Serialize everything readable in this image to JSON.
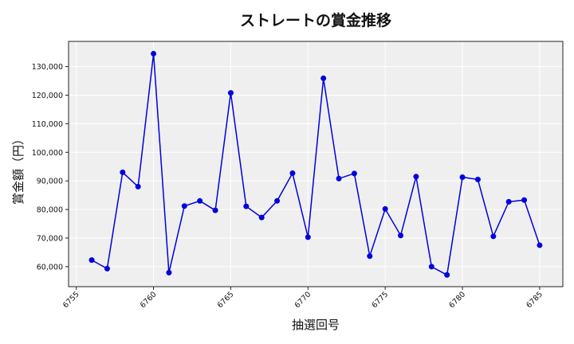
{
  "chart_data": {
    "type": "line",
    "title": "ストレートの賞金推移",
    "xlabel": "抽選回号",
    "ylabel": "賞金額（円）",
    "x": [
      6756,
      6757,
      6758,
      6759,
      6760,
      6761,
      6762,
      6763,
      6764,
      6765,
      6766,
      6767,
      6768,
      6769,
      6770,
      6771,
      6772,
      6773,
      6774,
      6775,
      6776,
      6777,
      6778,
      6779,
      6780,
      6781,
      6782,
      6783,
      6784,
      6785
    ],
    "series": [
      {
        "values": [
          62300,
          59300,
          93000,
          88000,
          134500,
          57900,
          81200,
          83000,
          79700,
          120800,
          81100,
          77200,
          83000,
          92700,
          70300,
          125900,
          90800,
          92600,
          63700,
          80200,
          70900,
          91500,
          60000,
          57100,
          91300,
          90500,
          70600,
          82700,
          83300,
          67500
        ],
        "color": "#0000dd"
      }
    ],
    "xlim": [
      6754.5,
      6786.5
    ],
    "ylim": [
      53000,
      138800
    ],
    "x_ticks": [
      6755,
      6760,
      6765,
      6770,
      6775,
      6780,
      6785
    ],
    "x_tick_labels": [
      "6755",
      "6760",
      "6765",
      "6770",
      "6775",
      "6780",
      "6785"
    ],
    "y_ticks": [
      60000,
      70000,
      80000,
      90000,
      100000,
      110000,
      120000,
      130000
    ],
    "y_tick_labels": [
      "60,000",
      "70,000",
      "80,000",
      "90,000",
      "100,000",
      "110,000",
      "120,000",
      "130,000"
    ],
    "grid": true,
    "plot_background": "#efefef"
  }
}
